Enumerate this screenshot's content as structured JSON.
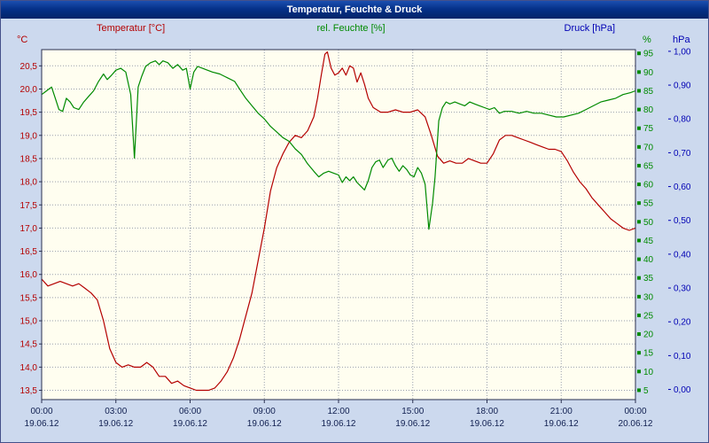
{
  "chart_data": {
    "type": "line",
    "title": "Temperatur, Feuchte & Druck",
    "x_range": [
      0,
      24
    ],
    "axis_text_color": "#101f50",
    "grid": {
      "color": "#9aa0aa",
      "style": "dotted"
    },
    "plot_bg": "#fffef0",
    "frame_color": "#2a3050",
    "x_axis": {
      "ticks": [
        {
          "hour": 0,
          "time": "00:00",
          "date": "19.06.12"
        },
        {
          "hour": 3,
          "time": "03:00",
          "date": "19.06.12"
        },
        {
          "hour": 6,
          "time": "06:00",
          "date": "19.06.12"
        },
        {
          "hour": 9,
          "time": "09:00",
          "date": "19.06.12"
        },
        {
          "hour": 12,
          "time": "12:00",
          "date": "19.06.12"
        },
        {
          "hour": 15,
          "time": "15:00",
          "date": "19.06.12"
        },
        {
          "hour": 18,
          "time": "18:00",
          "date": "19.06.12"
        },
        {
          "hour": 21,
          "time": "21:00",
          "date": "19.06.12"
        },
        {
          "hour": 24,
          "time": "00:00",
          "date": "20.06.12"
        }
      ]
    },
    "y_axes": {
      "temperature": {
        "unit": "°C",
        "color": "#b40000",
        "range": [
          13.3,
          20.85
        ],
        "ticks": [
          {
            "value": 13.5,
            "label": "13,5"
          },
          {
            "value": 14.0,
            "label": "14,0"
          },
          {
            "value": 14.5,
            "label": "14,5"
          },
          {
            "value": 15.0,
            "label": "15,0"
          },
          {
            "value": 15.5,
            "label": "15,5"
          },
          {
            "value": 16.0,
            "label": "16,0"
          },
          {
            "value": 16.5,
            "label": "16,5"
          },
          {
            "value": 17.0,
            "label": "17,0"
          },
          {
            "value": 17.5,
            "label": "17,5"
          },
          {
            "value": 18.0,
            "label": "18,0"
          },
          {
            "value": 18.5,
            "label": "18,5"
          },
          {
            "value": 19.0,
            "label": "19,0"
          },
          {
            "value": 19.5,
            "label": "19,5"
          },
          {
            "value": 20.0,
            "label": "20,0"
          },
          {
            "value": 20.5,
            "label": "20,5"
          }
        ]
      },
      "humidity": {
        "unit": "%",
        "color": "#008a00",
        "range": [
          2.5,
          96
        ],
        "ticks": [
          {
            "value": 5,
            "label": "5"
          },
          {
            "value": 10,
            "label": "10"
          },
          {
            "value": 15,
            "label": "15"
          },
          {
            "value": 20,
            "label": "20"
          },
          {
            "value": 25,
            "label": "25"
          },
          {
            "value": 30,
            "label": "30"
          },
          {
            "value": 35,
            "label": "35"
          },
          {
            "value": 40,
            "label": "40"
          },
          {
            "value": 45,
            "label": "45"
          },
          {
            "value": 50,
            "label": "50"
          },
          {
            "value": 55,
            "label": "55"
          },
          {
            "value": 60,
            "label": "60"
          },
          {
            "value": 65,
            "label": "65"
          },
          {
            "value": 70,
            "label": "70"
          },
          {
            "value": 75,
            "label": "75"
          },
          {
            "value": 80,
            "label": "80"
          },
          {
            "value": 85,
            "label": "85"
          },
          {
            "value": 90,
            "label": "90"
          },
          {
            "value": 95,
            "label": "95"
          }
        ]
      },
      "pressure": {
        "unit": "hPa",
        "color": "#0000b4",
        "range": [
          -0.03,
          1.005
        ],
        "ticks": [
          {
            "value": 0.0,
            "label": "0,00"
          },
          {
            "value": 0.1,
            "label": "0,10"
          },
          {
            "value": 0.2,
            "label": "0,20"
          },
          {
            "value": 0.3,
            "label": "0,30"
          },
          {
            "value": 0.4,
            "label": "0,40"
          },
          {
            "value": 0.5,
            "label": "0,50"
          },
          {
            "value": 0.6,
            "label": "0,60"
          },
          {
            "value": 0.7,
            "label": "0,70"
          },
          {
            "value": 0.8,
            "label": "0,80"
          },
          {
            "value": 0.9,
            "label": "0,90"
          },
          {
            "value": 1.0,
            "label": "1,00"
          }
        ]
      }
    },
    "series": [
      {
        "id": "temperature",
        "name": "Temperatur [°C]",
        "axis": "temperature",
        "color": "#b40000",
        "points": [
          [
            0,
            15.9
          ],
          [
            0.25,
            15.75
          ],
          [
            0.5,
            15.8
          ],
          [
            0.75,
            15.85
          ],
          [
            1,
            15.8
          ],
          [
            1.25,
            15.75
          ],
          [
            1.5,
            15.8
          ],
          [
            1.75,
            15.7
          ],
          [
            2,
            15.6
          ],
          [
            2.25,
            15.45
          ],
          [
            2.5,
            15.0
          ],
          [
            2.75,
            14.4
          ],
          [
            3,
            14.1
          ],
          [
            3.25,
            14.0
          ],
          [
            3.5,
            14.05
          ],
          [
            3.75,
            14.0
          ],
          [
            4,
            14.0
          ],
          [
            4.25,
            14.1
          ],
          [
            4.5,
            14.0
          ],
          [
            4.75,
            13.8
          ],
          [
            5,
            13.8
          ],
          [
            5.25,
            13.65
          ],
          [
            5.5,
            13.7
          ],
          [
            5.75,
            13.6
          ],
          [
            6,
            13.55
          ],
          [
            6.25,
            13.5
          ],
          [
            6.5,
            13.5
          ],
          [
            6.75,
            13.5
          ],
          [
            7,
            13.55
          ],
          [
            7.25,
            13.7
          ],
          [
            7.5,
            13.9
          ],
          [
            7.75,
            14.2
          ],
          [
            8,
            14.6
          ],
          [
            8.25,
            15.1
          ],
          [
            8.5,
            15.6
          ],
          [
            8.75,
            16.3
          ],
          [
            9,
            17.0
          ],
          [
            9.25,
            17.8
          ],
          [
            9.5,
            18.3
          ],
          [
            9.75,
            18.6
          ],
          [
            10,
            18.85
          ],
          [
            10.25,
            19.0
          ],
          [
            10.5,
            18.95
          ],
          [
            10.75,
            19.1
          ],
          [
            11,
            19.4
          ],
          [
            11.15,
            19.8
          ],
          [
            11.3,
            20.3
          ],
          [
            11.45,
            20.75
          ],
          [
            11.55,
            20.8
          ],
          [
            11.7,
            20.45
          ],
          [
            11.85,
            20.3
          ],
          [
            12,
            20.35
          ],
          [
            12.15,
            20.45
          ],
          [
            12.3,
            20.3
          ],
          [
            12.45,
            20.5
          ],
          [
            12.6,
            20.45
          ],
          [
            12.75,
            20.15
          ],
          [
            12.9,
            20.35
          ],
          [
            13.05,
            20.1
          ],
          [
            13.2,
            19.8
          ],
          [
            13.4,
            19.6
          ],
          [
            13.7,
            19.5
          ],
          [
            14,
            19.5
          ],
          [
            14.3,
            19.55
          ],
          [
            14.6,
            19.5
          ],
          [
            14.9,
            19.5
          ],
          [
            15.2,
            19.55
          ],
          [
            15.5,
            19.4
          ],
          [
            15.75,
            19.0
          ],
          [
            16,
            18.55
          ],
          [
            16.25,
            18.4
          ],
          [
            16.5,
            18.45
          ],
          [
            16.75,
            18.4
          ],
          [
            17,
            18.4
          ],
          [
            17.25,
            18.5
          ],
          [
            17.5,
            18.45
          ],
          [
            17.75,
            18.4
          ],
          [
            18,
            18.4
          ],
          [
            18.25,
            18.6
          ],
          [
            18.5,
            18.9
          ],
          [
            18.75,
            19.0
          ],
          [
            19,
            19.0
          ],
          [
            19.25,
            18.95
          ],
          [
            19.5,
            18.9
          ],
          [
            19.75,
            18.85
          ],
          [
            20,
            18.8
          ],
          [
            20.25,
            18.75
          ],
          [
            20.5,
            18.7
          ],
          [
            20.75,
            18.7
          ],
          [
            21,
            18.65
          ],
          [
            21.25,
            18.45
          ],
          [
            21.5,
            18.2
          ],
          [
            21.75,
            18.0
          ],
          [
            22,
            17.85
          ],
          [
            22.25,
            17.65
          ],
          [
            22.5,
            17.5
          ],
          [
            22.75,
            17.35
          ],
          [
            23,
            17.2
          ],
          [
            23.25,
            17.1
          ],
          [
            23.5,
            17.0
          ],
          [
            23.75,
            16.95
          ],
          [
            24,
            17.0
          ]
        ]
      },
      {
        "id": "humidity",
        "name": "rel. Feuchte [%]",
        "axis": "humidity",
        "color": "#008a00",
        "points": [
          [
            0,
            84
          ],
          [
            0.2,
            85
          ],
          [
            0.4,
            86
          ],
          [
            0.55,
            83
          ],
          [
            0.7,
            80
          ],
          [
            0.85,
            79.5
          ],
          [
            1,
            83
          ],
          [
            1.15,
            82
          ],
          [
            1.3,
            80.5
          ],
          [
            1.5,
            80
          ],
          [
            1.7,
            82
          ],
          [
            1.9,
            83.5
          ],
          [
            2.1,
            85
          ],
          [
            2.3,
            87.5
          ],
          [
            2.5,
            89.5
          ],
          [
            2.65,
            88
          ],
          [
            2.8,
            89
          ],
          [
            3,
            90.5
          ],
          [
            3.2,
            91
          ],
          [
            3.4,
            90
          ],
          [
            3.6,
            84
          ],
          [
            3.75,
            67
          ],
          [
            3.9,
            86
          ],
          [
            4.05,
            89
          ],
          [
            4.2,
            91.5
          ],
          [
            4.4,
            92.5
          ],
          [
            4.6,
            93
          ],
          [
            4.75,
            92
          ],
          [
            4.9,
            93
          ],
          [
            5.1,
            92.5
          ],
          [
            5.3,
            91
          ],
          [
            5.5,
            92
          ],
          [
            5.7,
            90.5
          ],
          [
            5.85,
            91
          ],
          [
            6,
            85.5
          ],
          [
            6.15,
            90
          ],
          [
            6.3,
            91.5
          ],
          [
            6.5,
            91
          ],
          [
            6.7,
            90.5
          ],
          [
            6.9,
            90
          ],
          [
            7.2,
            89.5
          ],
          [
            7.5,
            88.5
          ],
          [
            7.8,
            87.5
          ],
          [
            8,
            85.5
          ],
          [
            8.25,
            83
          ],
          [
            8.5,
            81
          ],
          [
            8.75,
            79
          ],
          [
            9,
            77.5
          ],
          [
            9.25,
            75.5
          ],
          [
            9.5,
            74
          ],
          [
            9.75,
            72.5
          ],
          [
            10,
            71.5
          ],
          [
            10.25,
            69.5
          ],
          [
            10.5,
            68
          ],
          [
            10.75,
            65.5
          ],
          [
            11,
            63.5
          ],
          [
            11.2,
            62
          ],
          [
            11.4,
            63
          ],
          [
            11.6,
            63.5
          ],
          [
            11.8,
            63
          ],
          [
            12,
            62.5
          ],
          [
            12.15,
            60.5
          ],
          [
            12.3,
            62
          ],
          [
            12.45,
            61
          ],
          [
            12.6,
            62
          ],
          [
            12.75,
            60.5
          ],
          [
            12.9,
            59.5
          ],
          [
            13.05,
            58.5
          ],
          [
            13.2,
            61
          ],
          [
            13.35,
            64.5
          ],
          [
            13.5,
            66
          ],
          [
            13.65,
            66.5
          ],
          [
            13.8,
            64.5
          ],
          [
            14,
            66.5
          ],
          [
            14.15,
            67
          ],
          [
            14.3,
            65
          ],
          [
            14.45,
            63.5
          ],
          [
            14.6,
            65
          ],
          [
            14.75,
            64
          ],
          [
            14.9,
            62.5
          ],
          [
            15.05,
            62
          ],
          [
            15.2,
            64.5
          ],
          [
            15.35,
            63
          ],
          [
            15.5,
            60
          ],
          [
            15.65,
            48
          ],
          [
            15.8,
            55
          ],
          [
            15.9,
            62
          ],
          [
            16.05,
            77
          ],
          [
            16.2,
            80.5
          ],
          [
            16.35,
            82
          ],
          [
            16.5,
            81.5
          ],
          [
            16.7,
            82
          ],
          [
            16.9,
            81.5
          ],
          [
            17.1,
            81
          ],
          [
            17.3,
            82
          ],
          [
            17.5,
            81.5
          ],
          [
            17.7,
            81
          ],
          [
            17.9,
            80.5
          ],
          [
            18.1,
            80
          ],
          [
            18.3,
            80.5
          ],
          [
            18.5,
            79
          ],
          [
            18.7,
            79.5
          ],
          [
            19,
            79.5
          ],
          [
            19.3,
            79
          ],
          [
            19.6,
            79.5
          ],
          [
            19.9,
            79
          ],
          [
            20.2,
            79
          ],
          [
            20.5,
            78.5
          ],
          [
            20.8,
            78
          ],
          [
            21.1,
            78
          ],
          [
            21.4,
            78.5
          ],
          [
            21.7,
            79
          ],
          [
            22,
            80
          ],
          [
            22.3,
            81
          ],
          [
            22.6,
            82
          ],
          [
            22.9,
            82.5
          ],
          [
            23.2,
            83
          ],
          [
            23.5,
            84
          ],
          [
            23.8,
            84.5
          ],
          [
            24,
            85
          ]
        ]
      },
      {
        "id": "pressure",
        "name": "Druck [hPa]",
        "axis": "pressure",
        "color": "#0000b4",
        "points": []
      }
    ]
  }
}
